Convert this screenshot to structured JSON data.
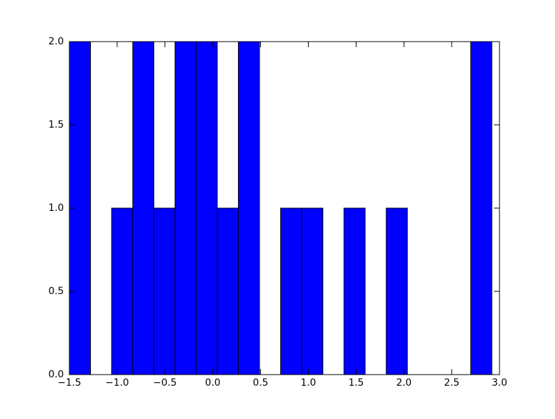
{
  "chart_data": {
    "type": "histogram",
    "bins": [
      -1.5,
      -1.279,
      -1.058,
      -0.837,
      -0.616,
      -0.395,
      -0.174,
      0.047,
      0.268,
      0.489,
      0.71,
      0.931,
      1.152,
      1.373,
      1.594,
      1.815,
      2.036,
      2.257,
      2.478,
      2.699,
      2.92
    ],
    "values": [
      2,
      0,
      1,
      2,
      1,
      2,
      2,
      1,
      2,
      0,
      1,
      1,
      0,
      1,
      0,
      1,
      0,
      0,
      0,
      2
    ],
    "color": "#0000ff",
    "xlim": [
      -1.5,
      3.0
    ],
    "xticks": [
      {
        "value": -1.5,
        "label": "−1.5"
      },
      {
        "value": -1.0,
        "label": "−1.0"
      },
      {
        "value": -0.5,
        "label": "−0.5"
      },
      {
        "value": 0,
        "label": "0.0"
      },
      {
        "value": 0.5,
        "label": "0.5"
      },
      {
        "value": 1,
        "label": "1.0"
      },
      {
        "value": 1.5,
        "label": "1.5"
      },
      {
        "value": 2,
        "label": "2.0"
      },
      {
        "value": 2.5,
        "label": "2.5"
      },
      {
        "value": 3,
        "label": "3.0"
      }
    ],
    "ylim": [
      0,
      2
    ],
    "yticks": [
      {
        "value": 0,
        "label": "0.0"
      },
      {
        "value": 0.5,
        "label": "0.5"
      },
      {
        "value": 1,
        "label": "1.0"
      },
      {
        "value": 1.5,
        "label": "1.5"
      },
      {
        "value": 2,
        "label": "2.0"
      }
    ]
  }
}
